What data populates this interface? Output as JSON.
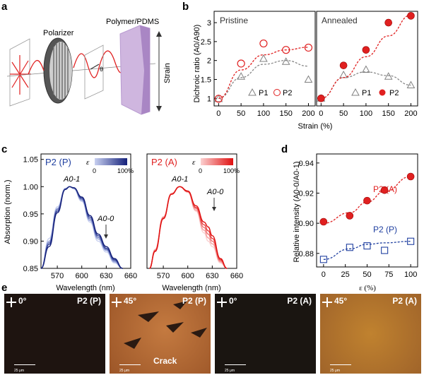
{
  "panel_labels": {
    "a": "a",
    "b": "b",
    "c": "c",
    "d": "d",
    "e": "e"
  },
  "schematic": {
    "polarizer_label": "Polarizer",
    "sample_label": "Polymer/PDMS",
    "strain_label": "Strain",
    "theta_label": "θ"
  },
  "colors": {
    "p1": "#808080",
    "p2": "#e02020",
    "p2_fill": "#e02020",
    "p_series": "#2040a0",
    "a_series": "#e02020"
  },
  "chart_data": [
    {
      "id": "b-pristine",
      "type": "scatter",
      "title": "Pristine",
      "ylabel": "Dichroic ratio (A0/A90)",
      "xlabel": "Strain (%)",
      "xlim": [
        -10,
        215
      ],
      "ylim": [
        0.8,
        3.3
      ],
      "xticks": [
        0,
        50,
        100,
        150,
        200
      ],
      "yticks": [
        1,
        1.5,
        2,
        2.5,
        3
      ],
      "ytick_labels": [
        "1",
        "1.5",
        "2",
        "2.5",
        "3"
      ],
      "series": [
        {
          "name": "P1",
          "marker": "triangle",
          "x": [
            0,
            50,
            100,
            150,
            200
          ],
          "y": [
            0.99,
            1.58,
            2.05,
            1.97,
            1.5
          ],
          "fit": [
            1.0,
            1.55,
            1.9,
            2.0,
            1.85
          ]
        },
        {
          "name": "P2",
          "marker": "open-circle",
          "x": [
            0,
            50,
            100,
            150,
            200
          ],
          "y": [
            0.99,
            1.92,
            2.45,
            2.28,
            2.34
          ],
          "fit": [
            1.0,
            1.75,
            2.15,
            2.28,
            2.35
          ]
        }
      ],
      "legend": [
        "P1",
        "P2"
      ]
    },
    {
      "id": "b-annealed",
      "type": "scatter",
      "title": "Annealed",
      "xlim": [
        -10,
        215
      ],
      "ylim": [
        0.8,
        3.3
      ],
      "xticks": [
        0,
        50,
        100,
        150,
        200
      ],
      "series": [
        {
          "name": "P1",
          "marker": "triangle",
          "x": [
            0,
            50,
            100,
            150,
            200
          ],
          "y": [
            1.0,
            1.62,
            1.76,
            1.58,
            1.35
          ],
          "fit": [
            1.0,
            1.55,
            1.7,
            1.6,
            1.35
          ]
        },
        {
          "name": "P2",
          "marker": "filled-circle",
          "x": [
            0,
            50,
            100,
            150,
            200
          ],
          "y": [
            1.0,
            1.87,
            2.28,
            3.0,
            3.18
          ],
          "fit": [
            1.0,
            1.55,
            2.1,
            2.65,
            3.2
          ]
        }
      ],
      "legend": [
        "P1",
        "P2"
      ]
    },
    {
      "id": "c-p",
      "type": "line",
      "title": "P2 (P)",
      "ylabel": "Absorption (norm.)",
      "xlabel": "Wavelength (nm)",
      "xlim": [
        550,
        660
      ],
      "ylim": [
        0.85,
        1.06
      ],
      "xticks": [
        570,
        600,
        630,
        660
      ],
      "yticks": [
        0.85,
        0.9,
        0.95,
        1.0,
        1.05
      ],
      "ytick_labels": [
        "0.85",
        "0.90",
        "0.95",
        "1.00",
        "1.05"
      ],
      "peak_label": "A0-1",
      "shoulder_label": "A0-0",
      "colorbar": {
        "label": "ε",
        "min": "0",
        "max": "100%"
      },
      "series": [
        {
          "name": "0%",
          "x": [
            550,
            560,
            570,
            580,
            585,
            590,
            600,
            610,
            620,
            630,
            640,
            650
          ],
          "y": [
            0.84,
            0.905,
            0.963,
            0.997,
            1.0,
            0.996,
            0.973,
            0.935,
            0.9,
            0.88,
            0.86,
            0.83
          ]
        },
        {
          "name": "30%",
          "x": [
            550,
            560,
            570,
            580,
            585,
            590,
            600,
            610,
            620,
            630,
            640,
            650
          ],
          "y": [
            0.84,
            0.9,
            0.96,
            0.996,
            1.0,
            0.997,
            0.975,
            0.938,
            0.904,
            0.883,
            0.862,
            0.83
          ]
        },
        {
          "name": "50%",
          "x": [
            550,
            560,
            570,
            580,
            585,
            590,
            600,
            610,
            620,
            630,
            640,
            650
          ],
          "y": [
            0.84,
            0.897,
            0.958,
            0.996,
            1.0,
            0.997,
            0.977,
            0.941,
            0.907,
            0.885,
            0.864,
            0.83
          ]
        },
        {
          "name": "70%",
          "x": [
            550,
            560,
            570,
            580,
            585,
            590,
            600,
            610,
            620,
            630,
            640,
            650
          ],
          "y": [
            0.84,
            0.894,
            0.955,
            0.995,
            1.0,
            0.998,
            0.979,
            0.944,
            0.91,
            0.887,
            0.866,
            0.83
          ]
        },
        {
          "name": "100%",
          "x": [
            550,
            560,
            570,
            580,
            585,
            590,
            600,
            610,
            620,
            630,
            640,
            650
          ],
          "y": [
            0.84,
            0.89,
            0.952,
            0.995,
            1.0,
            0.998,
            0.981,
            0.947,
            0.913,
            0.89,
            0.868,
            0.83
          ]
        }
      ]
    },
    {
      "id": "c-a",
      "type": "line",
      "title": "P2 (A)",
      "xlabel": "Wavelength (nm)",
      "xlim": [
        550,
        660
      ],
      "ylim": [
        0.85,
        1.06
      ],
      "xticks": [
        570,
        600,
        630,
        660
      ],
      "peak_label": "A0-1",
      "shoulder_label": "A0-0",
      "colorbar": {
        "label": "ε",
        "min": "0",
        "max": "100%"
      },
      "series": [
        {
          "name": "0%",
          "x": [
            553,
            560,
            570,
            580,
            590,
            600,
            610,
            620,
            625,
            630,
            640,
            648
          ],
          "y": [
            0.84,
            0.885,
            0.945,
            0.988,
            1.0,
            0.99,
            0.955,
            0.915,
            0.9,
            0.89,
            0.86,
            0.83
          ]
        },
        {
          "name": "30%",
          "x": [
            553,
            560,
            570,
            580,
            590,
            600,
            610,
            620,
            625,
            630,
            640,
            648
          ],
          "y": [
            0.84,
            0.884,
            0.944,
            0.987,
            1.0,
            0.99,
            0.957,
            0.92,
            0.906,
            0.895,
            0.862,
            0.83
          ]
        },
        {
          "name": "50%",
          "x": [
            553,
            560,
            570,
            580,
            590,
            600,
            610,
            620,
            625,
            630,
            640,
            648
          ],
          "y": [
            0.84,
            0.883,
            0.943,
            0.987,
            1.0,
            0.991,
            0.96,
            0.925,
            0.913,
            0.9,
            0.864,
            0.83
          ]
        },
        {
          "name": "70%",
          "x": [
            553,
            560,
            570,
            580,
            590,
            600,
            610,
            620,
            625,
            630,
            640,
            648
          ],
          "y": [
            0.84,
            0.882,
            0.942,
            0.986,
            1.0,
            0.991,
            0.962,
            0.93,
            0.919,
            0.905,
            0.866,
            0.83
          ]
        },
        {
          "name": "100%",
          "x": [
            553,
            560,
            570,
            580,
            590,
            600,
            610,
            620,
            625,
            630,
            640,
            648
          ],
          "y": [
            0.84,
            0.881,
            0.941,
            0.986,
            1.0,
            0.992,
            0.965,
            0.935,
            0.926,
            0.91,
            0.868,
            0.83
          ]
        }
      ]
    },
    {
      "id": "d",
      "type": "scatter",
      "ylabel": "Relative intensity (A0-0/A0-1)",
      "xlabel": "ε (%)",
      "xlim": [
        -8,
        108
      ],
      "ylim": [
        0.871,
        0.946
      ],
      "xticks": [
        0,
        25,
        50,
        75,
        100
      ],
      "yticks": [
        0.88,
        0.9,
        0.92,
        0.94
      ],
      "ytick_labels": [
        "0.88",
        "0.90",
        "0.92",
        "0.94"
      ],
      "series": [
        {
          "name": "P2 (A)",
          "marker": "filled-circle",
          "x": [
            0,
            30,
            50,
            70,
            100
          ],
          "y": [
            0.901,
            0.905,
            0.915,
            0.922,
            0.931
          ],
          "fit": [
            0.9,
            0.907,
            0.914,
            0.921,
            0.931
          ]
        },
        {
          "name": "P2 (P)",
          "marker": "open-square",
          "x": [
            0,
            30,
            50,
            70,
            100
          ],
          "y": [
            0.876,
            0.884,
            0.885,
            0.882,
            0.888
          ],
          "fit": [
            0.876,
            0.883,
            0.886,
            0.887,
            0.888
          ]
        }
      ]
    }
  ],
  "micrographs": [
    {
      "angle": "0°",
      "label": "P2 (P)",
      "scale": "25 μm",
      "bg": "#1e1410"
    },
    {
      "angle": "45°",
      "label": "P2 (P)",
      "scale": "25 μm",
      "bg": "#b56a34",
      "annotation": "Crack"
    },
    {
      "angle": "0°",
      "label": "P2 (A)",
      "scale": "25 μm",
      "bg": "#1a1511"
    },
    {
      "angle": "45°",
      "label": "P2 (A)",
      "scale": "25 μm",
      "bg": "#b8772e"
    }
  ]
}
